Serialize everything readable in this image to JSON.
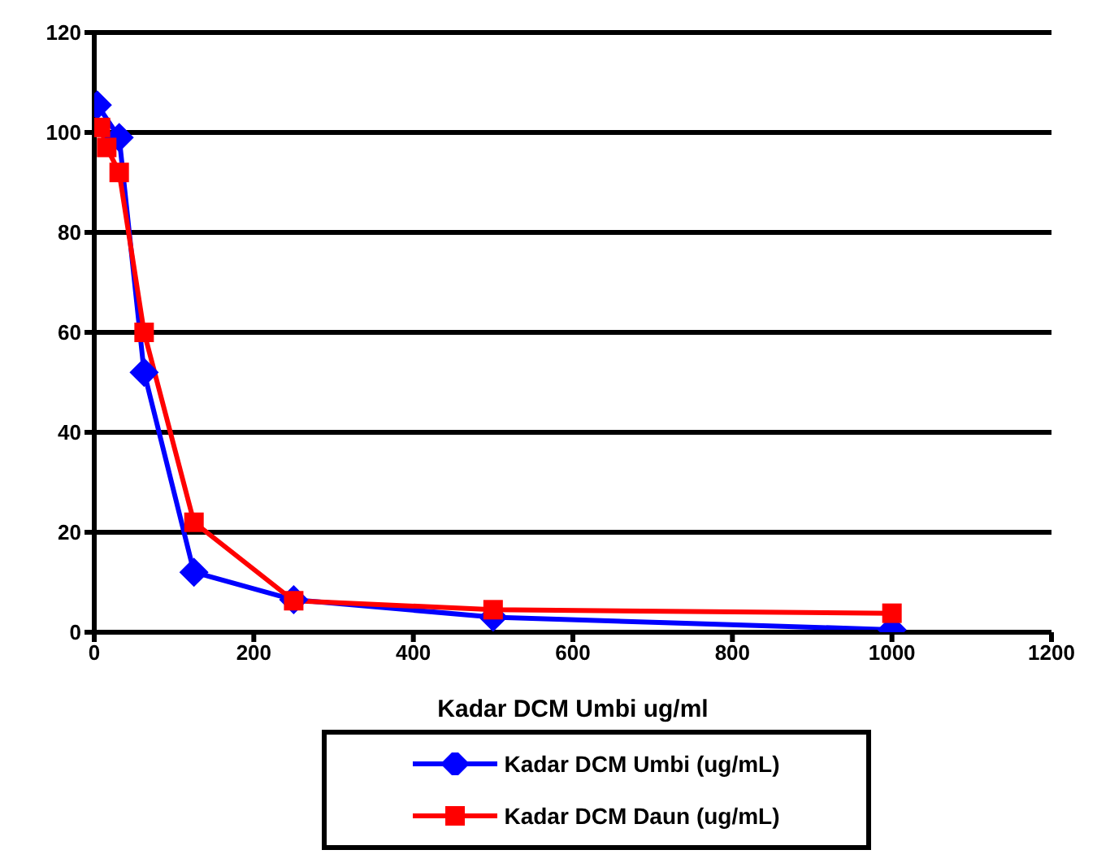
{
  "chart_data": {
    "type": "line",
    "xlabel": "Kadar DCM Umbi ug/ml",
    "xlim": [
      0,
      1200
    ],
    "xticks": [
      0,
      200,
      400,
      600,
      800,
      1000,
      1200
    ],
    "ylim": [
      0,
      120
    ],
    "yticks": [
      0,
      20,
      40,
      60,
      80,
      100,
      120
    ],
    "grid": "y",
    "legend": "bottom",
    "line_style": "solid",
    "series": [
      {
        "name": "Kadar DCM Umbi (ug/mL)",
        "color": "#0000ff",
        "marker": "diamond",
        "x": [
          3.9,
          31.25,
          62.5,
          125,
          250,
          500,
          1000
        ],
        "values": [
          105.5,
          99,
          52,
          12,
          6.5,
          3,
          0.5
        ]
      },
      {
        "name": "Kadar DCM Daun (ug/mL)",
        "color": "#ff0000",
        "marker": "square",
        "x": [
          7.8,
          15.6,
          31.25,
          62.5,
          125,
          250,
          500,
          1000
        ],
        "values": [
          101,
          97,
          92,
          60,
          22,
          6.3,
          4.5,
          3.8
        ]
      }
    ]
  }
}
